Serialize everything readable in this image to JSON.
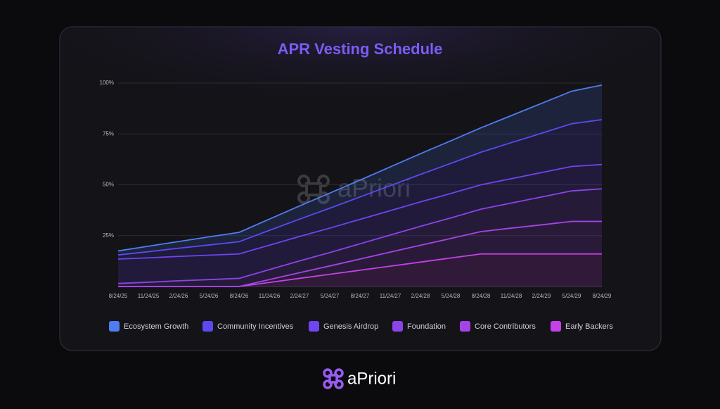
{
  "chart_data": {
    "type": "stacked-area",
    "title": "APR Vesting Schedule",
    "watermark": "aPriori",
    "categories": [
      "8/24/25",
      "11/24/25",
      "2/24/26",
      "5/24/26",
      "8/24/26",
      "11/24/26",
      "2/24/27",
      "5/24/27",
      "8/24/27",
      "11/24/27",
      "2/24/28",
      "5/24/28",
      "8/24/28",
      "11/24/28",
      "2/24/29",
      "5/24/29",
      "8/24/29"
    ],
    "ylim": [
      0,
      100
    ],
    "yticks": [
      {
        "value": 25,
        "label": "25%"
      },
      {
        "value": 50,
        "label": "50%"
      },
      {
        "value": 75,
        "label": "75%"
      },
      {
        "value": 100,
        "label": "100%"
      }
    ],
    "grid": true,
    "series": [
      {
        "name": "Early Backers",
        "color": "#c640e8",
        "values": [
          0,
          0,
          0,
          0,
          0,
          2,
          4,
          6,
          8,
          10,
          12,
          14,
          16,
          16,
          16,
          16,
          16
        ]
      },
      {
        "name": "Core Contributors",
        "color": "#a444e8",
        "values": [
          0,
          0,
          0,
          0,
          0,
          1.4,
          2.8,
          4.1,
          5.5,
          6.9,
          8.3,
          9.6,
          11,
          12.7,
          14.3,
          16,
          16
        ]
      },
      {
        "name": "Foundation",
        "color": "#8a44e8",
        "values": [
          1.5,
          2.1,
          2.8,
          3.4,
          4,
          4.9,
          5.8,
          6.6,
          7.5,
          8.4,
          9.3,
          10.1,
          11,
          12.3,
          13.7,
          15,
          16
        ]
      },
      {
        "name": "Genesis Airdrop",
        "color": "#7044f0",
        "values": [
          12,
          12,
          12,
          12,
          12,
          12,
          12,
          12,
          12,
          12,
          12,
          12,
          12,
          12,
          12,
          12,
          12
        ]
      },
      {
        "name": "Community Incentives",
        "color": "#5a4af0",
        "values": [
          2,
          3,
          4,
          5,
          6,
          7.3,
          8.5,
          9.8,
          11,
          12.3,
          13.5,
          14.8,
          16,
          17.7,
          19.3,
          21,
          22
        ]
      },
      {
        "name": "Ecosystem Growth",
        "color": "#4f7cf0",
        "values": [
          2,
          2.7,
          3.3,
          4,
          4.6,
          5.5,
          6.5,
          7.4,
          8.3,
          9.2,
          10.2,
          11.1,
          12,
          13.3,
          14.7,
          16,
          17
        ]
      }
    ]
  },
  "footer": {
    "brand": "aPriori"
  }
}
